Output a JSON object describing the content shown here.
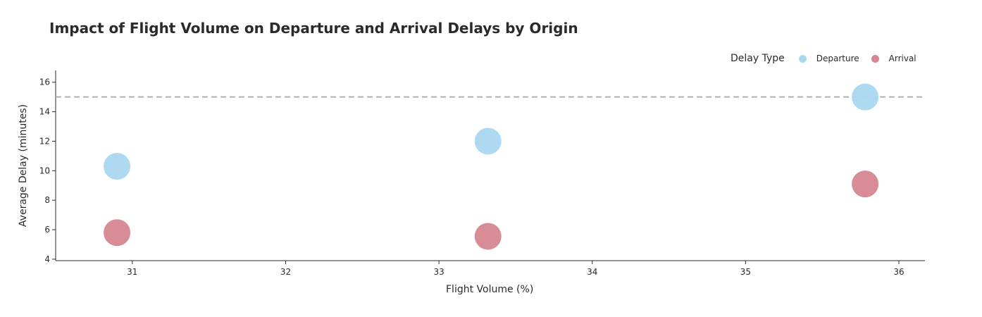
{
  "chart_data": {
    "type": "scatter",
    "title": "Impact of Flight Volume on Departure and Arrival Delays by Origin",
    "xlabel": "Flight Volume (%)",
    "ylabel": "Average Delay (minutes)",
    "xlim": [
      30.5,
      36.17
    ],
    "ylim": [
      3.9,
      16.8
    ],
    "x_ticks": [
      31,
      32,
      33,
      34,
      35,
      36
    ],
    "y_ticks": [
      4,
      6,
      8,
      10,
      12,
      14,
      16
    ],
    "grid": false,
    "legend": {
      "title": "Delay Type",
      "placement": "top-right"
    },
    "reference_line": {
      "y": 15,
      "style": "dashed",
      "color": "#b0b0b0"
    },
    "series": [
      {
        "name": "Departure",
        "color": "#a9d8f0",
        "points": [
          {
            "x": 30.9,
            "y": 10.3
          },
          {
            "x": 33.32,
            "y": 12.0
          },
          {
            "x": 35.78,
            "y": 15.0
          }
        ]
      },
      {
        "name": "Arrival",
        "color": "#d6868f",
        "points": [
          {
            "x": 30.9,
            "y": 5.8
          },
          {
            "x": 33.32,
            "y": 5.55
          },
          {
            "x": 35.78,
            "y": 9.1
          }
        ]
      }
    ]
  }
}
